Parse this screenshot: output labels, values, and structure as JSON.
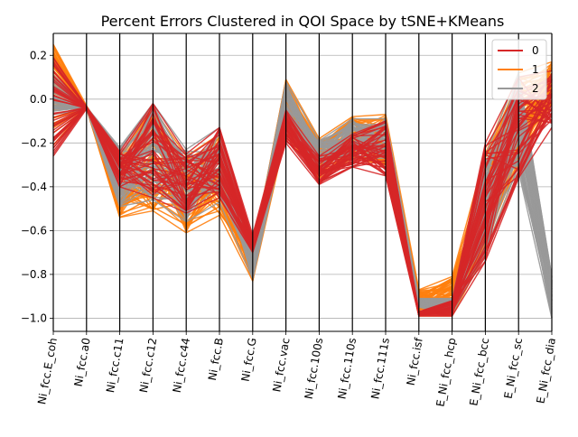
{
  "chart_data": {
    "type": "line",
    "title": "Percent Errors Clustered in QOI Space by tSNE+KMeans",
    "xlabel": "",
    "ylabel": "",
    "categories": [
      "Ni_fcc.E_coh",
      "Ni_fcc.a0",
      "Ni_fcc.c11",
      "Ni_fcc.c12",
      "Ni_fcc.c44",
      "Ni_fcc.B",
      "Ni_fcc.G",
      "Ni_fcc.vac",
      "Ni_fcc.100s",
      "Ni_fcc.110s",
      "Ni_fcc.111s",
      "Ni_fcc.isf",
      "E_Ni_fcc_hcp",
      "E_Ni_fcc_bcc",
      "E_Ni_fcc_sc",
      "E_Ni_fcc_dia"
    ],
    "ylim": [
      -1.06,
      0.3
    ],
    "yticks": [
      0.2,
      0.0,
      -0.2,
      -0.4,
      -0.6,
      -0.8,
      -1.0
    ],
    "ytick_labels": [
      "0.2",
      "0.0",
      "−0.2",
      "−0.4",
      "−0.6",
      "−0.8",
      "−1.0"
    ],
    "grid": true,
    "legend_position": "top-right",
    "legend_items": [
      "0",
      "1",
      "2"
    ],
    "series": [
      {
        "name": "0",
        "color": "#d62728",
        "min": [
          -0.26,
          -0.045,
          -0.4,
          -0.45,
          -0.52,
          -0.45,
          -0.7,
          -0.2,
          -0.39,
          -0.31,
          -0.35,
          -0.99,
          -0.99,
          -0.74,
          -0.36,
          -0.13
        ],
        "max": [
          0.19,
          -0.035,
          -0.24,
          -0.02,
          -0.25,
          -0.13,
          -0.62,
          -0.05,
          -0.26,
          -0.16,
          -0.1,
          -0.97,
          -0.92,
          -0.2,
          0.1,
          0.13
        ]
      },
      {
        "name": "1",
        "color": "#ff7f0e",
        "min": [
          -0.21,
          -0.045,
          -0.54,
          -0.51,
          -0.61,
          -0.53,
          -0.83,
          -0.16,
          -0.36,
          -0.27,
          -0.3,
          -0.99,
          -0.99,
          -0.7,
          -0.3,
          -0.02
        ],
        "max": [
          0.25,
          -0.03,
          -0.26,
          -0.04,
          -0.26,
          -0.16,
          -0.7,
          0.09,
          -0.18,
          -0.08,
          -0.07,
          -0.87,
          -0.81,
          -0.25,
          0.12,
          0.17
        ]
      },
      {
        "name": "2",
        "color": "#999999",
        "min": [
          -0.07,
          -0.045,
          -0.49,
          -0.46,
          -0.56,
          -0.47,
          -0.82,
          -0.14,
          -0.34,
          -0.27,
          -0.27,
          -0.95,
          -0.98,
          -0.7,
          -0.33,
          -1.0
        ],
        "max": [
          0.11,
          -0.035,
          -0.22,
          -0.02,
          -0.23,
          -0.13,
          -0.7,
          0.08,
          -0.19,
          -0.09,
          -0.09,
          -0.91,
          -0.91,
          -0.26,
          0.12,
          -0.81
        ]
      }
    ]
  }
}
